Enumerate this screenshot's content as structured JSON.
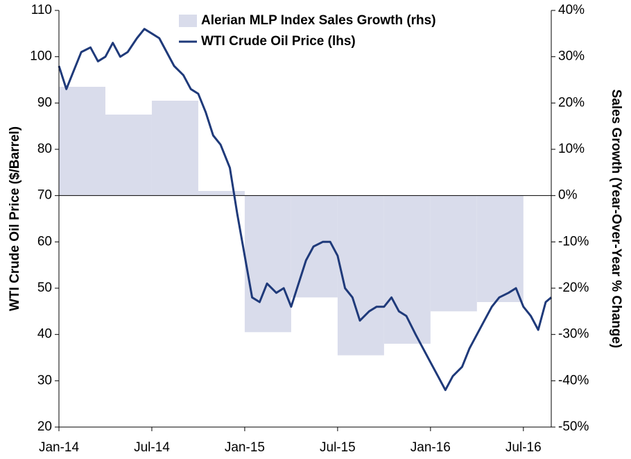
{
  "chart_data": {
    "type": "dual-axis",
    "y_label": "WTI Crude Oil Price ($/Barrel)",
    "y2_label": "Sales Growth (Year-Over-Year % Change)",
    "xlim": [
      2014,
      2016.65
    ],
    "xticks": [
      {
        "value": 2014,
        "label": "Jan-14"
      },
      {
        "value": 2014.5,
        "label": "Jul-14"
      },
      {
        "value": 2015,
        "label": "Jan-15"
      },
      {
        "value": 2015.5,
        "label": "Jul-15"
      },
      {
        "value": 2016,
        "label": "Jan-16"
      },
      {
        "value": 2016.5,
        "label": "Jul-16"
      }
    ],
    "ylim": [
      20,
      110
    ],
    "yticks": [
      20,
      30,
      40,
      50,
      60,
      70,
      80,
      90,
      100,
      110
    ],
    "y2lim": [
      -50,
      40
    ],
    "y2ticks": [
      {
        "value": -50,
        "label": "-50%"
      },
      {
        "value": -40,
        "label": "-40%"
      },
      {
        "value": -30,
        "label": "-30%"
      },
      {
        "value": -20,
        "label": "-20%"
      },
      {
        "value": -10,
        "label": "-10%"
      },
      {
        "value": 0,
        "label": "0%"
      },
      {
        "value": 10,
        "label": "10%"
      },
      {
        "value": 20,
        "label": "20%"
      },
      {
        "value": 30,
        "label": "30%"
      },
      {
        "value": 40,
        "label": "40%"
      }
    ],
    "series": [
      {
        "name": "Alerian MLP Index Sales Growth (rhs)",
        "type": "step-area",
        "axis": "y2",
        "color": "#d9dceb",
        "bins": [
          2014,
          2014.25,
          2014.5,
          2014.75,
          2015,
          2015.25,
          2015.5,
          2015.75,
          2016,
          2016.25,
          2016.5
        ],
        "values": [
          23.5,
          17.5,
          20.5,
          1,
          -29.5,
          -22,
          -34.5,
          -32,
          -25,
          -23
        ]
      },
      {
        "name": "WTI Crude Oil Price (lhs)",
        "type": "line",
        "axis": "y",
        "color": "#1f3a7a",
        "x": [
          2014.0,
          2014.04,
          2014.08,
          2014.12,
          2014.17,
          2014.21,
          2014.25,
          2014.29,
          2014.33,
          2014.37,
          2014.42,
          2014.46,
          2014.5,
          2014.54,
          2014.58,
          2014.62,
          2014.67,
          2014.71,
          2014.75,
          2014.79,
          2014.83,
          2014.87,
          2014.92,
          2014.96,
          2015.0,
          2015.04,
          2015.08,
          2015.12,
          2015.17,
          2015.21,
          2015.25,
          2015.29,
          2015.33,
          2015.37,
          2015.42,
          2015.46,
          2015.5,
          2015.54,
          2015.58,
          2015.62,
          2015.67,
          2015.71,
          2015.75,
          2015.79,
          2015.83,
          2015.87,
          2015.92,
          2015.96,
          2016.0,
          2016.04,
          2016.08,
          2016.12,
          2016.17,
          2016.21,
          2016.25,
          2016.29,
          2016.33,
          2016.37,
          2016.42,
          2016.46,
          2016.5,
          2016.54,
          2016.58,
          2016.62,
          2016.65
        ],
        "values": [
          98,
          93,
          97,
          101,
          102,
          99,
          100,
          103,
          100,
          101,
          104,
          106,
          105,
          104,
          101,
          98,
          96,
          93,
          92,
          88,
          83,
          81,
          76,
          66,
          57,
          48,
          47,
          51,
          49,
          50,
          46,
          51,
          56,
          59,
          60,
          60,
          57,
          50,
          48,
          43,
          45,
          46,
          46,
          48,
          45,
          44,
          40,
          37,
          34,
          31,
          28,
          31,
          33,
          37,
          40,
          43,
          46,
          48,
          49,
          50,
          46,
          44,
          41,
          47,
          48
        ]
      }
    ]
  }
}
